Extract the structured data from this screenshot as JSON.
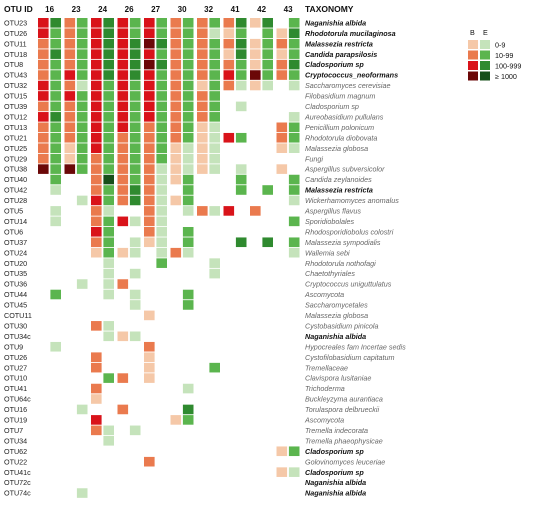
{
  "chart_data": {
    "type": "heatmap",
    "row_header": "OTU ID",
    "taxonomy_header": "TAXONOMY",
    "columns": [
      "16",
      "23",
      "24",
      "26",
      "27",
      "30",
      "32",
      "41",
      "42",
      "43"
    ],
    "sub_columns": [
      "B",
      "E"
    ],
    "legend": {
      "title_b": "B",
      "title_e": "E",
      "levels": [
        "0-9",
        "10-99",
        "100-999",
        "≥ 1000"
      ],
      "colors_b": [
        "#f5c8a8",
        "#ea7a4e",
        "#d9131a",
        "#6b0808"
      ],
      "colors_e": [
        "#c5e3bb",
        "#5bb54e",
        "#2f8a2f",
        "#174f1a"
      ]
    },
    "rows": [
      {
        "otu": "OTU23",
        "taxon": "Naganishia albida",
        "highlight": true,
        "b": [
          3,
          2,
          3,
          3,
          3,
          2,
          2,
          2,
          1,
          0
        ],
        "e": [
          3,
          2,
          3,
          2,
          2,
          2,
          2,
          3,
          3,
          2
        ]
      },
      {
        "otu": "OTU26",
        "taxon": "Rhodotorula mucilaginosa",
        "highlight": true,
        "b": [
          3,
          2,
          3,
          3,
          3,
          2,
          2,
          1,
          0,
          1
        ],
        "e": [
          2,
          2,
          3,
          2,
          2,
          2,
          1,
          2,
          2,
          3
        ]
      },
      {
        "otu": "OTU11",
        "taxon": "Malassezia restricta",
        "highlight": true,
        "b": [
          2,
          2,
          3,
          3,
          4,
          2,
          2,
          2,
          1,
          2
        ],
        "e": [
          2,
          2,
          3,
          3,
          3,
          2,
          2,
          3,
          2,
          2
        ]
      },
      {
        "otu": "OTU18",
        "taxon": "Candida parapsilosis",
        "highlight": true,
        "b": [
          2,
          2,
          3,
          3,
          3,
          2,
          2,
          1,
          1,
          1
        ],
        "e": [
          3,
          2,
          3,
          3,
          2,
          2,
          2,
          3,
          2,
          2
        ]
      },
      {
        "otu": "OTU8",
        "taxon": "Cladosporium sp",
        "highlight": true,
        "b": [
          2,
          2,
          3,
          3,
          4,
          2,
          2,
          2,
          1,
          2
        ],
        "e": [
          2,
          2,
          3,
          3,
          3,
          2,
          2,
          2,
          2,
          3
        ]
      },
      {
        "otu": "OTU43",
        "taxon": "Cryptococcus_neoformans",
        "highlight": true,
        "b": [
          2,
          3,
          3,
          3,
          3,
          2,
          2,
          3,
          4,
          2
        ],
        "e": [
          2,
          2,
          3,
          3,
          2,
          2,
          2,
          2,
          2,
          2
        ]
      },
      {
        "otu": "OTU32",
        "taxon": "Saccharomyces cerevisiae",
        "highlight": false,
        "b": [
          3,
          2,
          3,
          3,
          3,
          2,
          1,
          2,
          1,
          0
        ],
        "e": [
          2,
          1,
          2,
          2,
          2,
          2,
          2,
          1,
          1,
          1
        ]
      },
      {
        "otu": "OTU15",
        "taxon": "Filobasidium magnum",
        "highlight": false,
        "b": [
          3,
          3,
          3,
          3,
          3,
          2,
          2,
          0,
          0,
          0
        ],
        "e": [
          2,
          2,
          2,
          2,
          2,
          2,
          2,
          0,
          0,
          0
        ]
      },
      {
        "otu": "OTU39",
        "taxon": "Cladosporium sp",
        "highlight": false,
        "b": [
          2,
          2,
          3,
          3,
          3,
          2,
          2,
          0,
          0,
          0
        ],
        "e": [
          2,
          2,
          2,
          2,
          2,
          2,
          2,
          1,
          0,
          0
        ]
      },
      {
        "otu": "OTU12",
        "taxon": "Aureobasidium pullulans",
        "highlight": false,
        "b": [
          3,
          2,
          3,
          3,
          3,
          2,
          2,
          0,
          0,
          0
        ],
        "e": [
          3,
          2,
          2,
          2,
          2,
          2,
          2,
          0,
          0,
          1
        ]
      },
      {
        "otu": "OTU13",
        "taxon": "Penicillium polonicum",
        "highlight": false,
        "b": [
          2,
          2,
          3,
          3,
          2,
          2,
          1,
          0,
          0,
          2
        ],
        "e": [
          2,
          2,
          2,
          2,
          2,
          2,
          1,
          0,
          0,
          2
        ]
      },
      {
        "otu": "OTU21",
        "taxon": "Rhodotorula diobovata",
        "highlight": false,
        "b": [
          2,
          2,
          3,
          2,
          2,
          2,
          1,
          3,
          0,
          2
        ],
        "e": [
          2,
          2,
          2,
          2,
          2,
          2,
          1,
          2,
          0,
          2
        ]
      },
      {
        "otu": "OTU25",
        "taxon": "Malassezia globosa",
        "highlight": false,
        "b": [
          2,
          1,
          3,
          2,
          2,
          1,
          1,
          0,
          0,
          1
        ],
        "e": [
          2,
          2,
          2,
          2,
          2,
          1,
          1,
          0,
          0,
          1
        ]
      },
      {
        "otu": "OTU29",
        "taxon": "Fungi",
        "highlight": false,
        "b": [
          2,
          1,
          2,
          2,
          2,
          1,
          1,
          0,
          0,
          0
        ],
        "e": [
          2,
          2,
          2,
          2,
          2,
          1,
          1,
          0,
          0,
          0
        ]
      },
      {
        "otu": "OTU38",
        "taxon": "Aspergillus subversicolor",
        "highlight": false,
        "b": [
          4,
          4,
          2,
          2,
          2,
          1,
          1,
          0,
          0,
          1
        ],
        "e": [
          2,
          2,
          2,
          2,
          1,
          1,
          1,
          1,
          0,
          0
        ]
      },
      {
        "otu": "OTU40",
        "taxon": "Candida zeylanoides",
        "highlight": false,
        "b": [
          0,
          0,
          2,
          2,
          2,
          1,
          0,
          0,
          0,
          0
        ],
        "e": [
          2,
          0,
          4,
          2,
          1,
          2,
          0,
          2,
          0,
          2
        ]
      },
      {
        "otu": "OTU42",
        "taxon": "Malassezia restricta",
        "highlight": true,
        "b": [
          0,
          0,
          2,
          2,
          2,
          0,
          0,
          0,
          0,
          0
        ],
        "e": [
          1,
          0,
          2,
          3,
          1,
          2,
          0,
          2,
          2,
          2
        ]
      },
      {
        "otu": "OTU28",
        "taxon": "Wickerhamomyces anomalus",
        "highlight": false,
        "b": [
          0,
          0,
          3,
          2,
          2,
          1,
          0,
          0,
          0,
          0
        ],
        "e": [
          0,
          1,
          2,
          3,
          1,
          2,
          0,
          0,
          0,
          1
        ]
      },
      {
        "otu": "OTU5",
        "taxon": "Aspergillus flavus",
        "highlight": false,
        "b": [
          0,
          0,
          2,
          0,
          2,
          0,
          2,
          3,
          2,
          0
        ],
        "e": [
          1,
          0,
          1,
          0,
          1,
          1,
          1,
          0,
          0,
          0
        ]
      },
      {
        "otu": "OTU14",
        "taxon": "Sporidiobolales",
        "highlight": false,
        "b": [
          0,
          0,
          2,
          3,
          2,
          0,
          0,
          0,
          0,
          0
        ],
        "e": [
          1,
          0,
          2,
          1,
          1,
          0,
          0,
          0,
          0,
          2
        ]
      },
      {
        "otu": "OTU6",
        "taxon": "Rhodosporidiobolus colostri",
        "highlight": false,
        "b": [
          0,
          0,
          3,
          0,
          2,
          0,
          0,
          0,
          0,
          0
        ],
        "e": [
          0,
          0,
          2,
          0,
          1,
          2,
          0,
          0,
          0,
          0
        ]
      },
      {
        "otu": "OTU37",
        "taxon": "Malassezia sympodialis",
        "highlight": false,
        "b": [
          0,
          0,
          2,
          0,
          1,
          0,
          0,
          0,
          0,
          0
        ],
        "e": [
          0,
          0,
          2,
          1,
          1,
          2,
          0,
          3,
          3,
          2
        ]
      },
      {
        "otu": "OTU24",
        "taxon": "Wallemia sebi",
        "highlight": false,
        "b": [
          0,
          0,
          1,
          1,
          0,
          2,
          0,
          0,
          0,
          0
        ],
        "e": [
          0,
          0,
          2,
          1,
          1,
          1,
          0,
          0,
          0,
          1
        ]
      },
      {
        "otu": "OTU20",
        "taxon": "Rhodotorula nothofagi",
        "highlight": false,
        "b": [
          0,
          0,
          0,
          0,
          0,
          0,
          0,
          0,
          0,
          0
        ],
        "e": [
          0,
          0,
          1,
          0,
          2,
          0,
          1,
          0,
          0,
          0
        ]
      },
      {
        "otu": "OTU35",
        "taxon": "Chaetothyriales",
        "highlight": false,
        "b": [
          0,
          0,
          0,
          0,
          0,
          0,
          0,
          0,
          0,
          0
        ],
        "e": [
          0,
          0,
          1,
          1,
          0,
          0,
          1,
          0,
          0,
          0
        ]
      },
      {
        "otu": "OTU36",
        "taxon": "Cryptococcus uniguttulatus",
        "highlight": false,
        "b": [
          0,
          0,
          0,
          2,
          0,
          0,
          0,
          0,
          0,
          0
        ],
        "e": [
          0,
          1,
          1,
          0,
          0,
          0,
          0,
          0,
          0,
          0
        ]
      },
      {
        "otu": "OTU44",
        "taxon": "Ascomycota",
        "highlight": false,
        "b": [
          0,
          0,
          0,
          0,
          0,
          0,
          0,
          0,
          0,
          0
        ],
        "e": [
          2,
          0,
          1,
          1,
          0,
          2,
          0,
          0,
          0,
          0
        ]
      },
      {
        "otu": "OTU45",
        "taxon": "Saccharomycetales",
        "highlight": false,
        "b": [
          0,
          0,
          0,
          0,
          0,
          0,
          0,
          0,
          0,
          0
        ],
        "e": [
          0,
          0,
          0,
          1,
          0,
          2,
          0,
          0,
          0,
          0
        ]
      },
      {
        "otu": "COTU11",
        "taxon": "Malassezia globosa",
        "highlight": false,
        "b": [
          0,
          0,
          0,
          0,
          1,
          0,
          0,
          0,
          0,
          0
        ],
        "e": [
          0,
          0,
          0,
          0,
          0,
          0,
          0,
          0,
          0,
          0
        ]
      },
      {
        "otu": "OTU30",
        "taxon": "Cystobasidium pinicola",
        "highlight": false,
        "b": [
          0,
          0,
          2,
          0,
          0,
          0,
          0,
          0,
          0,
          0
        ],
        "e": [
          0,
          0,
          1,
          0,
          0,
          0,
          0,
          0,
          0,
          0
        ]
      },
      {
        "otu": "OTU34c",
        "taxon": "Naganishia albida",
        "highlight": true,
        "b": [
          0,
          0,
          0,
          1,
          0,
          0,
          0,
          0,
          0,
          0
        ],
        "e": [
          0,
          0,
          1,
          1,
          0,
          0,
          0,
          0,
          0,
          0
        ]
      },
      {
        "otu": "OTU9",
        "taxon": "Hypocreales fam Incertae sedis",
        "highlight": false,
        "b": [
          0,
          0,
          0,
          0,
          2,
          0,
          0,
          0,
          0,
          0
        ],
        "e": [
          1,
          0,
          0,
          0,
          0,
          0,
          0,
          0,
          0,
          0
        ]
      },
      {
        "otu": "OTU26",
        "taxon": "Cystofilobasidium capitatum",
        "highlight": false,
        "b": [
          0,
          0,
          2,
          0,
          1,
          0,
          0,
          0,
          0,
          0
        ],
        "e": [
          0,
          0,
          0,
          0,
          0,
          0,
          0,
          0,
          0,
          0
        ]
      },
      {
        "otu": "OTU27",
        "taxon": "Tremellaceae",
        "highlight": false,
        "b": [
          0,
          0,
          2,
          0,
          1,
          0,
          0,
          0,
          0,
          0
        ],
        "e": [
          0,
          0,
          0,
          0,
          0,
          0,
          2,
          0,
          0,
          0
        ]
      },
      {
        "otu": "OTU10",
        "taxon": "Clavispora lusitaniae",
        "highlight": false,
        "b": [
          0,
          0,
          0,
          2,
          1,
          0,
          0,
          0,
          0,
          0
        ],
        "e": [
          0,
          0,
          2,
          0,
          0,
          0,
          0,
          0,
          0,
          0
        ]
      },
      {
        "otu": "OTU41",
        "taxon": "Trichoderma",
        "highlight": false,
        "b": [
          0,
          0,
          2,
          0,
          0,
          0,
          0,
          0,
          0,
          0
        ],
        "e": [
          0,
          0,
          0,
          0,
          0,
          1,
          0,
          0,
          0,
          0
        ]
      },
      {
        "otu": "OTU64c",
        "taxon": "Buckleyzyma aurantiaca",
        "highlight": false,
        "b": [
          0,
          0,
          1,
          0,
          0,
          0,
          0,
          0,
          0,
          0
        ],
        "e": [
          0,
          0,
          0,
          0,
          0,
          0,
          0,
          0,
          0,
          0
        ]
      },
      {
        "otu": "OTU16",
        "taxon": "Torulaspora delbrueckii",
        "highlight": false,
        "b": [
          0,
          0,
          0,
          2,
          0,
          0,
          0,
          0,
          0,
          0
        ],
        "e": [
          0,
          1,
          0,
          0,
          0,
          3,
          0,
          0,
          0,
          0
        ]
      },
      {
        "otu": "OTU19",
        "taxon": "Ascomycota",
        "highlight": false,
        "b": [
          0,
          0,
          3,
          0,
          0,
          1,
          0,
          0,
          0,
          0
        ],
        "e": [
          0,
          0,
          0,
          0,
          0,
          2,
          0,
          0,
          0,
          0
        ]
      },
      {
        "otu": "OTU7",
        "taxon": "Tremella indecorata",
        "highlight": false,
        "b": [
          0,
          0,
          2,
          0,
          0,
          0,
          0,
          0,
          0,
          0
        ],
        "e": [
          0,
          0,
          1,
          1,
          0,
          0,
          0,
          0,
          0,
          0
        ]
      },
      {
        "otu": "OTU34",
        "taxon": "Tremella phaeophysicae",
        "highlight": false,
        "b": [
          0,
          0,
          0,
          0,
          0,
          0,
          0,
          0,
          0,
          0
        ],
        "e": [
          0,
          0,
          1,
          0,
          0,
          0,
          0,
          0,
          0,
          0
        ]
      },
      {
        "otu": "OTU62",
        "taxon": "Cladosporium sp",
        "highlight": true,
        "b": [
          0,
          0,
          0,
          0,
          0,
          0,
          0,
          0,
          0,
          1
        ],
        "e": [
          0,
          0,
          0,
          0,
          0,
          0,
          0,
          0,
          0,
          2
        ]
      },
      {
        "otu": "OTU22",
        "taxon": "Golovinomyces leuceriae",
        "highlight": false,
        "b": [
          0,
          0,
          0,
          0,
          2,
          0,
          0,
          0,
          0,
          0
        ],
        "e": [
          0,
          0,
          0,
          0,
          0,
          0,
          0,
          0,
          0,
          0
        ]
      },
      {
        "otu": "OTU41c",
        "taxon": "Cladosporium sp",
        "highlight": true,
        "b": [
          0,
          0,
          0,
          0,
          0,
          0,
          0,
          0,
          0,
          1
        ],
        "e": [
          0,
          0,
          0,
          0,
          0,
          0,
          0,
          0,
          0,
          1
        ]
      },
      {
        "otu": "OTU72c",
        "taxon": "Naganishia albida",
        "highlight": true,
        "b": [
          0,
          0,
          0,
          0,
          0,
          0,
          0,
          0,
          0,
          0
        ],
        "e": [
          0,
          0,
          0,
          0,
          0,
          0,
          0,
          0,
          0,
          0
        ]
      },
      {
        "otu": "OTU74c",
        "taxon": "Naganishia albida",
        "highlight": true,
        "b": [
          0,
          0,
          0,
          0,
          0,
          0,
          0,
          0,
          0,
          0
        ],
        "e": [
          0,
          1,
          0,
          0,
          0,
          0,
          0,
          0,
          0,
          0
        ]
      }
    ]
  }
}
